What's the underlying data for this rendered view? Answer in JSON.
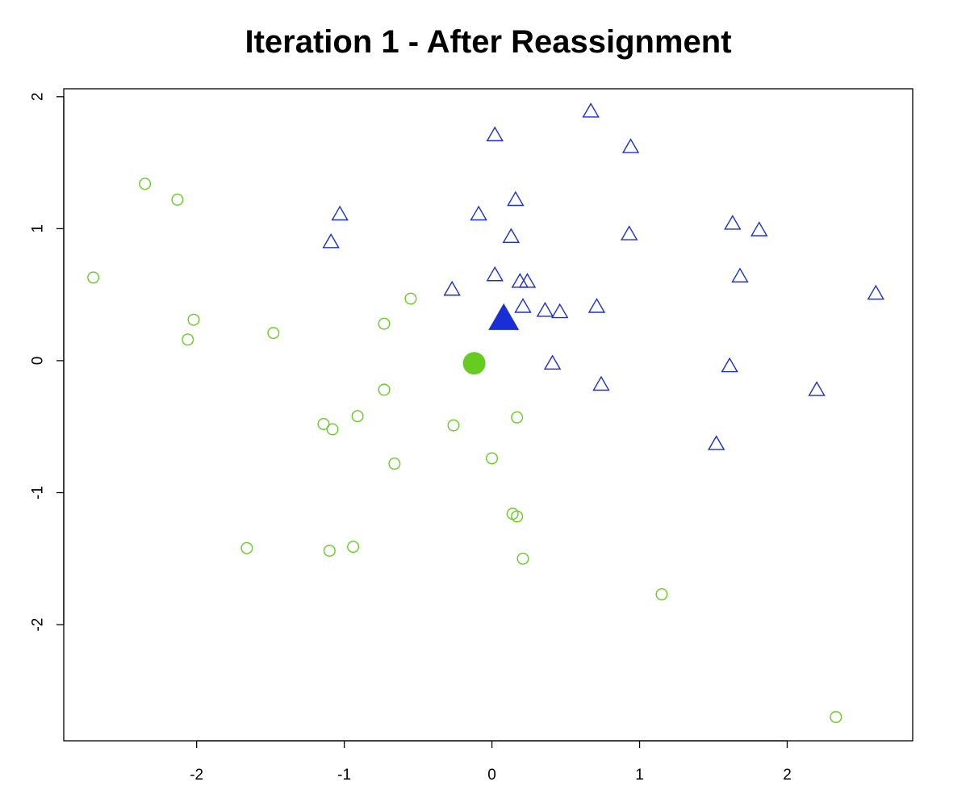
{
  "chart_data": {
    "type": "scatter",
    "title": "Iteration 1 - After Reassignment",
    "xlabel": "",
    "ylabel": "",
    "xlim": [
      -2.9,
      2.85
    ],
    "ylim": [
      -2.88,
      2.06
    ],
    "xticks": [
      -2,
      -1,
      0,
      1,
      2
    ],
    "xtick_labels": [
      "-2",
      "-1",
      "0",
      "1",
      "2"
    ],
    "yticks": [
      -2,
      -1,
      0,
      1,
      2
    ],
    "ytick_labels": [
      "-2",
      "-1",
      "0",
      "1",
      "2"
    ],
    "grid": false,
    "legend": "none",
    "series": [
      {
        "marker": "open-circle",
        "color": "#66cc22",
        "points": [
          [
            -2.35,
            1.34
          ],
          [
            -2.13,
            1.22
          ],
          [
            -2.7,
            0.63
          ],
          [
            -2.02,
            0.31
          ],
          [
            -2.06,
            0.16
          ],
          [
            -1.48,
            0.21
          ],
          [
            -0.55,
            0.47
          ],
          [
            -0.73,
            0.28
          ],
          [
            -0.73,
            -0.22
          ],
          [
            -0.91,
            -0.42
          ],
          [
            -1.14,
            -0.48
          ],
          [
            -1.08,
            -0.52
          ],
          [
            -0.66,
            -0.78
          ],
          [
            -0.26,
            -0.49
          ],
          [
            0.17,
            -0.43
          ],
          [
            0.0,
            -0.74
          ],
          [
            0.14,
            -1.16
          ],
          [
            0.17,
            -1.18
          ],
          [
            0.21,
            -1.5
          ],
          [
            -1.66,
            -1.42
          ],
          [
            -1.1,
            -1.44
          ],
          [
            -0.94,
            -1.41
          ],
          [
            1.15,
            -1.77
          ],
          [
            2.33,
            -2.7
          ]
        ]
      },
      {
        "marker": "open-triangle",
        "color": "#1a2ed6",
        "points": [
          [
            0.67,
            1.88
          ],
          [
            0.02,
            1.7
          ],
          [
            0.94,
            1.61
          ],
          [
            0.16,
            1.21
          ],
          [
            -0.09,
            1.1
          ],
          [
            -1.03,
            1.1
          ],
          [
            -1.09,
            0.89
          ],
          [
            0.13,
            0.93
          ],
          [
            0.93,
            0.95
          ],
          [
            1.63,
            1.03
          ],
          [
            1.81,
            0.98
          ],
          [
            0.02,
            0.64
          ],
          [
            0.19,
            0.59
          ],
          [
            0.24,
            0.59
          ],
          [
            -0.27,
            0.53
          ],
          [
            1.68,
            0.63
          ],
          [
            0.21,
            0.4
          ],
          [
            0.36,
            0.37
          ],
          [
            0.46,
            0.36
          ],
          [
            0.71,
            0.4
          ],
          [
            2.6,
            0.5
          ],
          [
            0.41,
            -0.03
          ],
          [
            1.61,
            -0.05
          ],
          [
            0.74,
            -0.19
          ],
          [
            2.2,
            -0.23
          ],
          [
            1.52,
            -0.64
          ]
        ]
      },
      {
        "marker": "filled-circle",
        "color": "#66cc22",
        "points": [
          [
            -0.12,
            -0.02
          ]
        ]
      },
      {
        "marker": "filled-triangle",
        "color": "#1a2ed6",
        "points": [
          [
            0.08,
            0.3
          ]
        ]
      }
    ]
  }
}
